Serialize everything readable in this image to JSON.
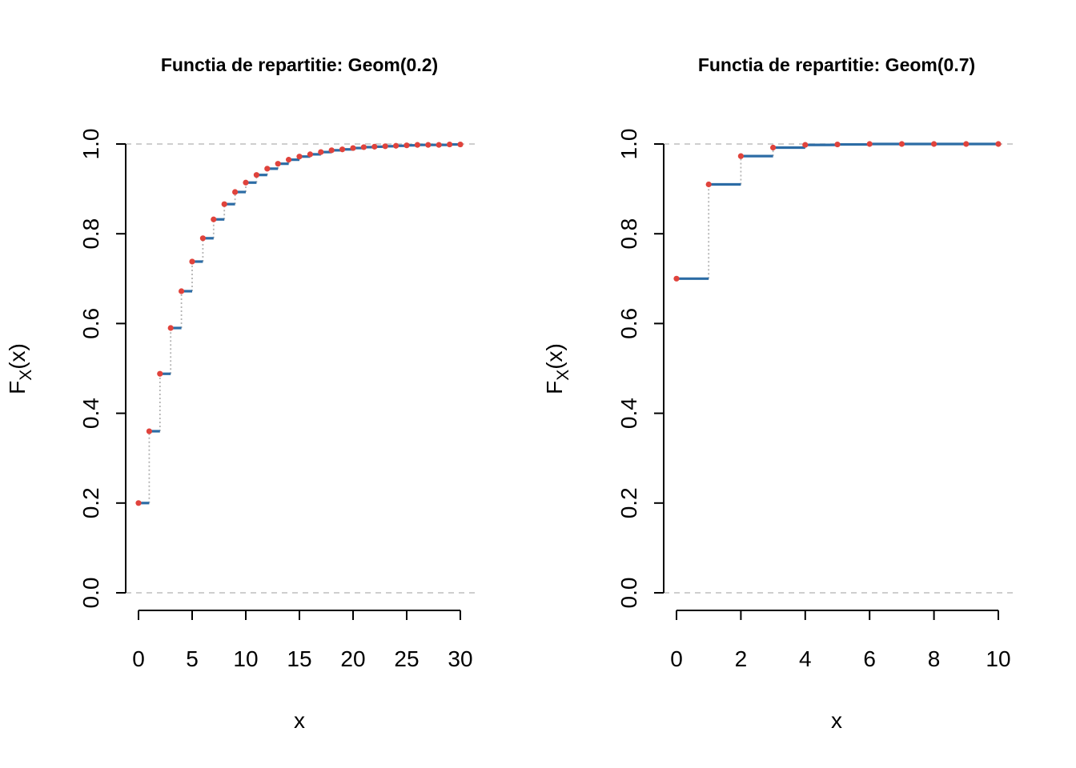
{
  "chart_data": [
    {
      "type": "line",
      "title": "Functia de repartitie: Geom(0.2)",
      "xlabel": "x",
      "ylabel_main": "F",
      "ylabel_sub": "X",
      "ylabel_tail": "(x)",
      "xlim": [
        0,
        30
      ],
      "ylim": [
        0,
        1
      ],
      "xticks": [
        0,
        5,
        10,
        15,
        20,
        25,
        30
      ],
      "yticks": [
        0.0,
        0.2,
        0.4,
        0.6,
        0.8,
        1.0
      ],
      "ytick_labels": [
        "0.0",
        "0.2",
        "0.4",
        "0.6",
        "0.8",
        "1.0"
      ],
      "reference_lines": [
        0,
        1
      ],
      "series": [
        {
          "style": "step",
          "x": [
            0,
            1,
            2,
            3,
            4,
            5,
            6,
            7,
            8,
            9,
            10,
            11,
            12,
            13,
            14,
            15,
            16,
            17,
            18,
            19,
            20,
            21,
            22,
            23,
            24,
            25,
            26,
            27,
            28,
            29,
            30
          ],
          "values": [
            0.2,
            0.36,
            0.488,
            0.59,
            0.672,
            0.738,
            0.79,
            0.832,
            0.866,
            0.893,
            0.914,
            0.931,
            0.945,
            0.956,
            0.965,
            0.972,
            0.977,
            0.982,
            0.986,
            0.988,
            0.991,
            0.993,
            0.994,
            0.995,
            0.996,
            0.997,
            0.998,
            0.998,
            0.998,
            0.999,
            0.999
          ]
        }
      ],
      "colors": {
        "step": "#2c6ca5",
        "point": "#e0433c",
        "jump": "#b3b3b3",
        "reference": "#bdbdbd"
      }
    },
    {
      "type": "line",
      "title": "Functia de repartitie: Geom(0.7)",
      "xlabel": "x",
      "ylabel_main": "F",
      "ylabel_sub": "X",
      "ylabel_tail": "(x)",
      "xlim": [
        0,
        10
      ],
      "ylim": [
        0,
        1
      ],
      "xticks": [
        0,
        2,
        4,
        6,
        8,
        10
      ],
      "yticks": [
        0.0,
        0.2,
        0.4,
        0.6,
        0.8,
        1.0
      ],
      "ytick_labels": [
        "0.0",
        "0.2",
        "0.4",
        "0.6",
        "0.8",
        "1.0"
      ],
      "reference_lines": [
        0,
        1
      ],
      "series": [
        {
          "style": "step",
          "x": [
            0,
            1,
            2,
            3,
            4,
            5,
            6,
            7,
            8,
            9,
            10
          ],
          "values": [
            0.7,
            0.91,
            0.973,
            0.992,
            0.998,
            0.999,
            1.0,
            1.0,
            1.0,
            1.0,
            1.0
          ]
        }
      ],
      "colors": {
        "step": "#2c6ca5",
        "point": "#e0433c",
        "jump": "#b3b3b3",
        "reference": "#bdbdbd"
      }
    }
  ]
}
